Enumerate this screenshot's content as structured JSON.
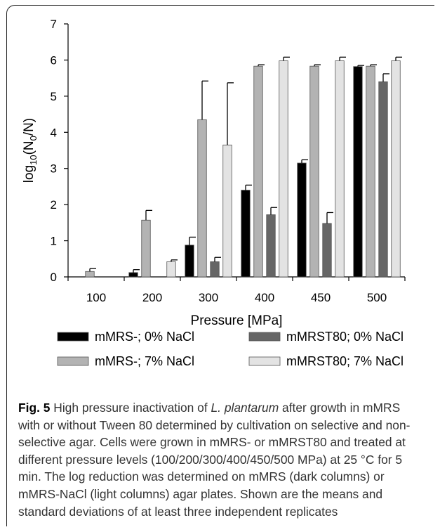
{
  "chart_data": {
    "type": "bar",
    "categories": [
      "100",
      "200",
      "300",
      "400",
      "450",
      "500"
    ],
    "xlabel": "Pressure [MPa]",
    "ylabel_base": "log",
    "ylabel_sub10": "10",
    "ylabel_open": "(N",
    "ylabel_sub0": "0",
    "ylabel_close": "/N)",
    "ylim": [
      0,
      7
    ],
    "yticks": [
      "0",
      "1",
      "2",
      "3",
      "4",
      "5",
      "6",
      "7"
    ],
    "grid": false,
    "legend_position": "bottom",
    "series": [
      {
        "name": "mMRS-; 0% NaCl",
        "color": "#000000",
        "values": [
          0,
          0.12,
          0.88,
          2.4,
          3.15,
          5.82
        ],
        "errors": [
          0,
          0.08,
          0.22,
          0.14,
          0.09,
          0.03
        ]
      },
      {
        "name": "mMRS-; 7% NaCl",
        "color": "#b3b3b3",
        "values": [
          0.15,
          1.57,
          4.35,
          5.83,
          5.83,
          5.83
        ],
        "errors": [
          0.08,
          0.27,
          1.07,
          0.04,
          0.04,
          0.04
        ]
      },
      {
        "name": "mMRST80; 0% NaCl",
        "color": "#666666",
        "values": [
          0,
          0,
          0.42,
          1.72,
          1.48,
          5.4
        ],
        "errors": [
          0,
          0,
          0.12,
          0.2,
          0.3,
          0.22
        ]
      },
      {
        "name": "mMRST80; 7% NaCl",
        "color": "#e3e3e3",
        "values": [
          0,
          0.42,
          3.65,
          5.98,
          5.98,
          5.98
        ],
        "errors": [
          0,
          0.05,
          1.72,
          0.1,
          0.1,
          0.1
        ]
      }
    ]
  },
  "caption": {
    "fig_label": "Fig. 5",
    "text_1": " High pressure inactivation of ",
    "species": "L. plantarum",
    "text_2": " after growth in mMRS with or without Tween 80 determined by cultivation on selective and non-selective agar. Cells were grown in mMRS- or mMRST80 and treated at different pressure levels (100/200/300/400/450/500 MPa) at 25 °C for 5 min. The log reduction was determined on mMRS (dark columns) or mMRS-NaCl (light columns) agar plates. Shown are the means and standard deviations of at least three independent replicates"
  }
}
